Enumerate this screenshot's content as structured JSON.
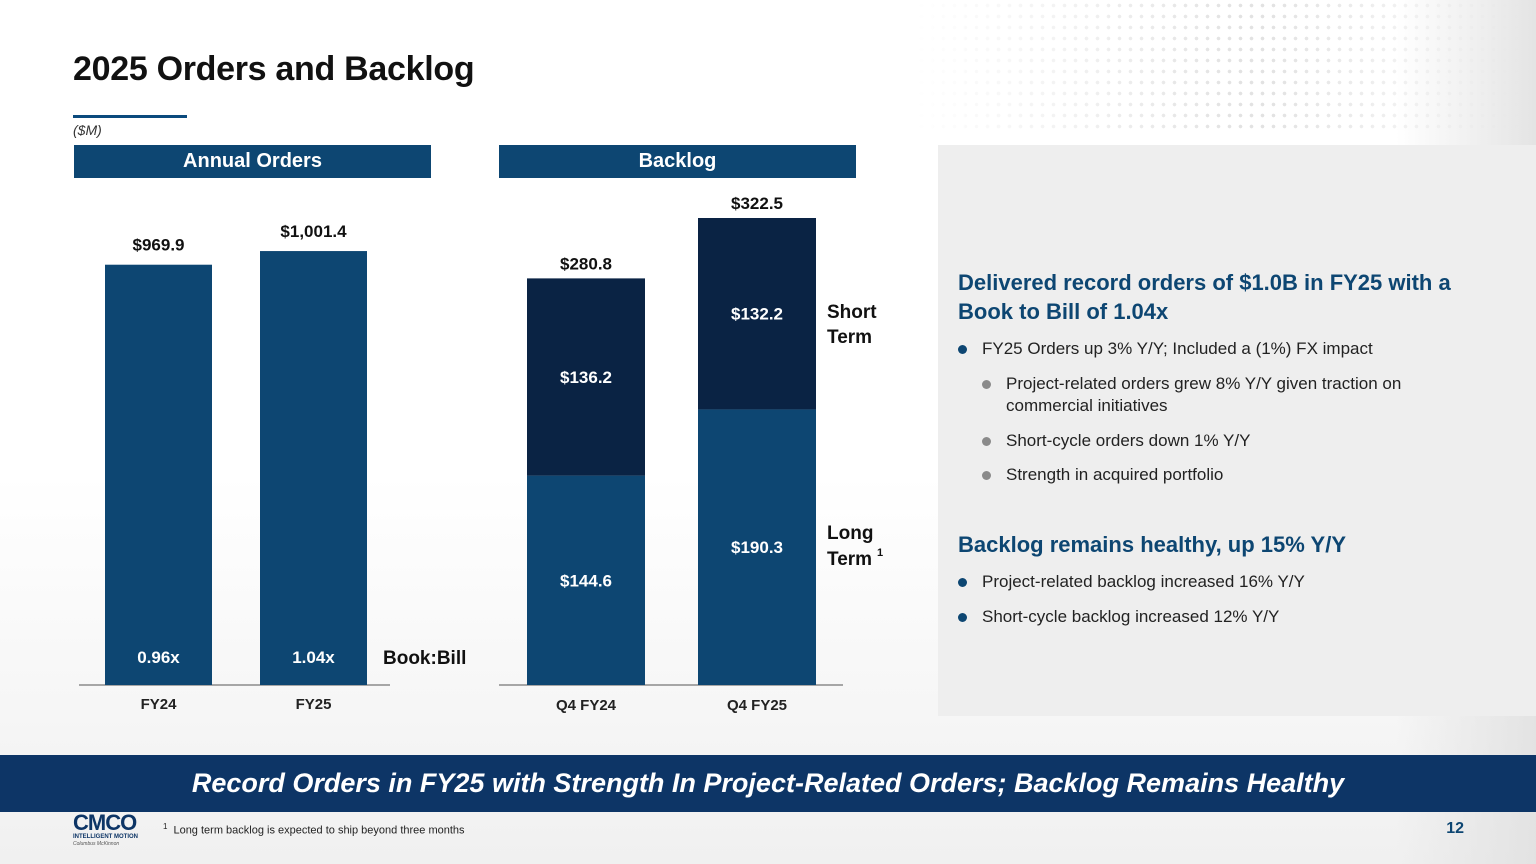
{
  "title": "2025 Orders and Backlog",
  "units": "($M)",
  "colors": {
    "primary": "#0d4672",
    "dark": "#0a2344",
    "banner": "#0d3566",
    "accent": "#0b4a7d"
  },
  "chart_data": [
    {
      "type": "bar",
      "title": "Annual Orders",
      "categories": [
        "FY24",
        "FY25"
      ],
      "values": [
        969.9,
        1001.4
      ],
      "value_labels": [
        "$969.9",
        "$1,001.4"
      ],
      "book_to_bill": [
        "0.96x",
        "1.04x"
      ],
      "book_to_bill_label": "Book:Bill",
      "ylim": [
        0,
        1080
      ]
    },
    {
      "type": "bar",
      "stacked": true,
      "title": "Backlog",
      "categories": [
        "Q4 FY24",
        "Q4 FY25"
      ],
      "totals": [
        280.8,
        322.5
      ],
      "total_labels": [
        "$280.8",
        "$322.5"
      ],
      "series": [
        {
          "name": "Long Term",
          "values": [
            144.6,
            190.3
          ],
          "labels": [
            "$144.6",
            "$190.3"
          ],
          "legend": "Long",
          "legend2": "Term",
          "legend_sup": "1"
        },
        {
          "name": "Short Term",
          "values": [
            136.2,
            132.2
          ],
          "labels": [
            "$136.2",
            "$132.2"
          ],
          "legend": "Short",
          "legend2": "Term"
        }
      ],
      "ylim": [
        0,
        322.5
      ]
    }
  ],
  "info": {
    "heading1": "Delivered record orders of $1.0B in FY25 with a Book to Bill of 1.04x",
    "bullets1": [
      "FY25 Orders up 3% Y/Y; Included a (1%) FX impact",
      "Project-related orders grew 8% Y/Y given traction on commercial initiatives",
      "Short-cycle orders down 1% Y/Y",
      "Strength in acquired portfolio"
    ],
    "heading2": "Backlog remains healthy, up 15% Y/Y",
    "bullets2": [
      "Project-related backlog increased 16% Y/Y",
      "Short-cycle backlog increased 12% Y/Y"
    ]
  },
  "banner": "Record Orders in FY25 with Strength In Project-Related Orders; Backlog Remains Healthy",
  "footnote": {
    "sup": "1",
    "text": "Long term backlog is expected to ship beyond three months"
  },
  "page_number": "12",
  "logo": {
    "mark": "CMCO",
    "line1": "INTELLIGENT MOTION",
    "line2": "Columbus McKinnon"
  }
}
